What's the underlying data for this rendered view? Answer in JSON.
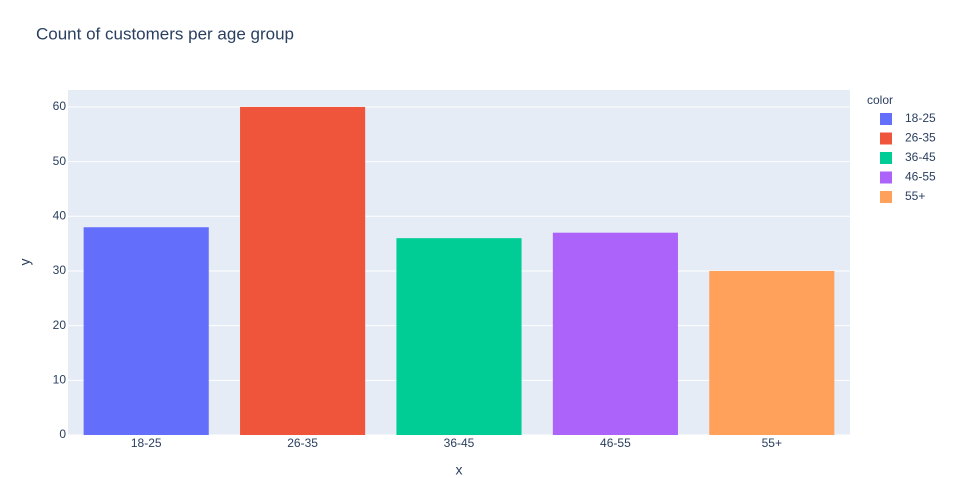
{
  "chart_data": {
    "type": "bar",
    "title": "Count of customers per age group",
    "x_label": "x",
    "y_label": "y",
    "legend_title": "color",
    "categories": [
      "18-25",
      "26-35",
      "36-45",
      "46-55",
      "55+"
    ],
    "series": [
      {
        "name": "18-25",
        "color": "#636efa",
        "values": [
          38,
          null,
          null,
          null,
          null
        ]
      },
      {
        "name": "26-35",
        "color": "#ef553b",
        "values": [
          null,
          60,
          null,
          null,
          null
        ]
      },
      {
        "name": "36-45",
        "color": "#00cc96",
        "values": [
          null,
          null,
          36,
          null,
          null
        ]
      },
      {
        "name": "46-55",
        "color": "#ab63fa",
        "values": [
          null,
          null,
          null,
          37,
          null
        ]
      },
      {
        "name": "55+",
        "color": "#ffa15a",
        "values": [
          null,
          null,
          null,
          null,
          30
        ]
      }
    ],
    "ylim": [
      0,
      63.1
    ],
    "yticks": [
      0,
      10,
      20,
      30,
      40,
      50,
      60
    ],
    "grid": true,
    "legend": "right"
  }
}
